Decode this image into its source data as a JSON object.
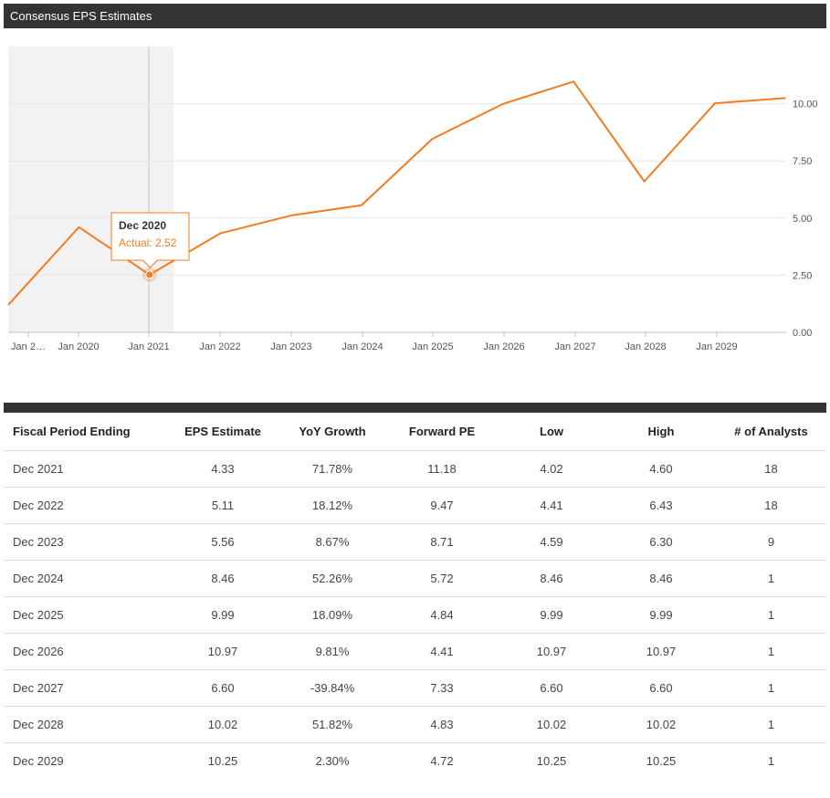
{
  "header": {
    "title": "Consensus EPS Estimates"
  },
  "colors": {
    "line": "#f47c20",
    "header_bg": "#333333",
    "highlight_band": "#f2f2f2"
  },
  "chart_data": {
    "type": "line",
    "title": "Consensus EPS Estimates",
    "xlabel": "",
    "ylabel": "",
    "x_ticks": [
      "Jan 2…",
      "Jan 2020",
      "Jan 2021",
      "Jan 2022",
      "Jan 2023",
      "Jan 2024",
      "Jan 2025",
      "Jan 2026",
      "Jan 2027",
      "Jan 2028",
      "Jan 2029"
    ],
    "y_ticks": [
      "0.00",
      "2.50",
      "5.00",
      "7.50",
      "10.00"
    ],
    "ylim": [
      0,
      12.5
    ],
    "y_axis_side": "right",
    "grid": true,
    "series": [
      {
        "x": [
          "Dec 2018",
          "Dec 2019",
          "Dec 2020",
          "Dec 2021",
          "Dec 2022",
          "Dec 2023",
          "Dec 2024",
          "Dec 2025",
          "Dec 2026",
          "Dec 2027",
          "Dec 2028",
          "Dec 2029"
        ],
        "values": [
          1.2,
          4.6,
          2.52,
          4.33,
          5.11,
          5.56,
          8.46,
          9.99,
          10.97,
          6.6,
          10.02,
          10.25
        ]
      }
    ],
    "tooltip": {
      "title": "Dec 2020",
      "label": "Actual: ",
      "value": "2.52"
    }
  },
  "table": {
    "headers": [
      "Fiscal Period Ending",
      "EPS Estimate",
      "YoY Growth",
      "Forward PE",
      "Low",
      "High",
      "# of Analysts"
    ],
    "rows": [
      [
        "Dec 2021",
        "4.33",
        "71.78%",
        "11.18",
        "4.02",
        "4.60",
        "18"
      ],
      [
        "Dec 2022",
        "5.11",
        "18.12%",
        "9.47",
        "4.41",
        "6.43",
        "18"
      ],
      [
        "Dec 2023",
        "5.56",
        "8.67%",
        "8.71",
        "4.59",
        "6.30",
        "9"
      ],
      [
        "Dec 2024",
        "8.46",
        "52.26%",
        "5.72",
        "8.46",
        "8.46",
        "1"
      ],
      [
        "Dec 2025",
        "9.99",
        "18.09%",
        "4.84",
        "9.99",
        "9.99",
        "1"
      ],
      [
        "Dec 2026",
        "10.97",
        "9.81%",
        "4.41",
        "10.97",
        "10.97",
        "1"
      ],
      [
        "Dec 2027",
        "6.60",
        "-39.84%",
        "7.33",
        "6.60",
        "6.60",
        "1"
      ],
      [
        "Dec 2028",
        "10.02",
        "51.82%",
        "4.83",
        "10.02",
        "10.02",
        "1"
      ],
      [
        "Dec 2029",
        "10.25",
        "2.30%",
        "4.72",
        "10.25",
        "10.25",
        "1"
      ]
    ]
  }
}
